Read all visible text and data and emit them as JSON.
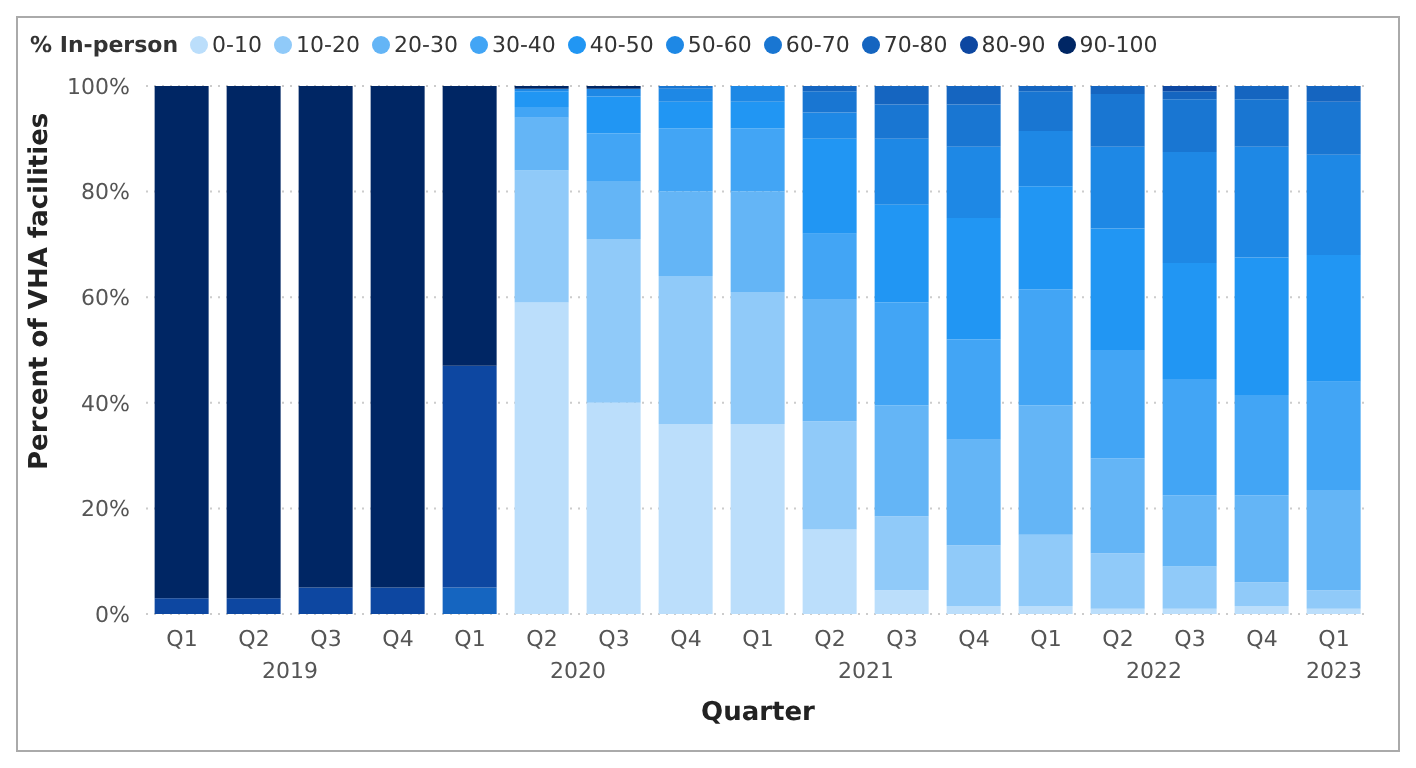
{
  "chart_data": {
    "type": "bar",
    "stacked": true,
    "xlabel": "Quarter",
    "ylabel": "Percent of VHA facilities",
    "legend_title": "% In-person",
    "legend": "top left",
    "grid": "y",
    "categories": [
      "Q1",
      "Q2",
      "Q3",
      "Q4",
      "Q1",
      "Q2",
      "Q3",
      "Q4",
      "Q1",
      "Q2",
      "Q3",
      "Q4",
      "Q1",
      "Q2",
      "Q3",
      "Q4",
      "Q1"
    ],
    "annotations": [
      "2019",
      "2020",
      "2021",
      "2022",
      "2023"
    ],
    "ylim": [
      0,
      100
    ],
    "yticks": [
      {
        "value": 0,
        "label": "0%"
      },
      {
        "value": 20,
        "label": "20%"
      },
      {
        "value": 40,
        "label": "40%"
      },
      {
        "value": 60,
        "label": "60%"
      },
      {
        "value": 80,
        "label": "80%"
      },
      {
        "value": 100,
        "label": "100%"
      }
    ],
    "series": [
      {
        "name": "0-10",
        "color": "#bbdefb",
        "values": [
          0,
          0,
          0,
          0,
          0,
          59,
          40,
          36,
          36,
          16,
          4.5,
          1.5,
          1.5,
          1,
          1,
          1.5,
          1
        ]
      },
      {
        "name": "10-20",
        "color": "#90caf9",
        "values": [
          0,
          0,
          0,
          0,
          0,
          25,
          31,
          28,
          25,
          20.5,
          14,
          11.5,
          13.5,
          10.5,
          8,
          4.5,
          3.5
        ]
      },
      {
        "name": "20-30",
        "color": "#64b5f6",
        "values": [
          0,
          0,
          0,
          0,
          0,
          10,
          11,
          16,
          19,
          23,
          21,
          20,
          24.5,
          18,
          13.5,
          16.5,
          19
        ]
      },
      {
        "name": "30-40",
        "color": "#42a5f5",
        "values": [
          0,
          0,
          0,
          0,
          0,
          2,
          9,
          12,
          12,
          12.5,
          19.5,
          19,
          22,
          20.5,
          22,
          19,
          20.5
        ]
      },
      {
        "name": "40-50",
        "color": "#2196f3",
        "values": [
          0,
          0,
          0,
          0,
          0,
          3,
          7,
          5,
          5,
          18,
          18.5,
          23,
          19.5,
          23,
          22,
          26,
          24
        ]
      },
      {
        "name": "50-60",
        "color": "#1e88e5",
        "values": [
          0,
          0,
          0,
          0,
          0,
          0.5,
          1.5,
          2.5,
          3,
          5,
          12.5,
          13.5,
          10.5,
          15.5,
          21,
          21,
          19
        ]
      },
      {
        "name": "60-70",
        "color": "#1976d2",
        "values": [
          0,
          0,
          0,
          0,
          0,
          0,
          0,
          0.5,
          0,
          4,
          6.5,
          8,
          7.5,
          10,
          10,
          9,
          10
        ]
      },
      {
        "name": "70-80",
        "color": "#1565c0",
        "values": [
          0,
          0,
          0,
          0,
          5,
          0,
          0,
          0,
          0,
          1,
          3.5,
          3.5,
          1,
          1.5,
          1.5,
          2.5,
          3
        ]
      },
      {
        "name": "80-90",
        "color": "#0d47a1",
        "values": [
          3,
          3,
          5,
          5,
          42,
          0,
          0,
          0,
          0,
          0,
          0,
          0,
          0,
          0,
          1,
          0,
          0
        ]
      },
      {
        "name": "90-100",
        "color": "#002664",
        "values": [
          97,
          97,
          95,
          95,
          53,
          0.5,
          0.5,
          0,
          0,
          0,
          0,
          0,
          0,
          0,
          0,
          0,
          0
        ]
      }
    ]
  }
}
